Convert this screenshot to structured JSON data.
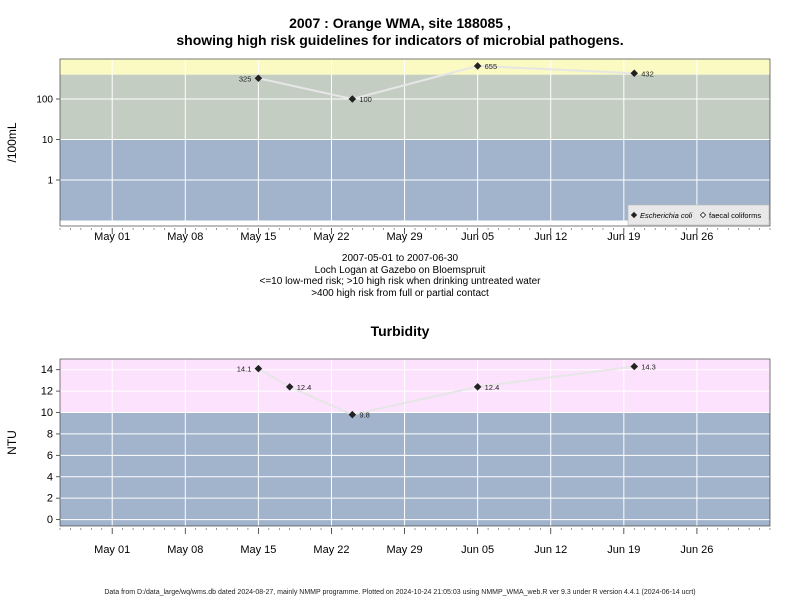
{
  "chart_data": [
    {
      "type": "line",
      "title_line1": "2007 : Orange WMA, site 188085 ,",
      "title_line2": "showing high risk guidelines for indicators of microbial pathogens.",
      "ylabel": "/100mL",
      "yscale": "log",
      "yticks": [
        {
          "v": 1,
          "label": "1"
        },
        {
          "v": 10,
          "label": "10"
        },
        {
          "v": 100,
          "label": "100"
        }
      ],
      "xlim": [
        "2007-04-26",
        "2007-07-03"
      ],
      "xticks": [
        {
          "date": "2007-05-01",
          "label": "May 01"
        },
        {
          "date": "2007-05-08",
          "label": "May 08"
        },
        {
          "date": "2007-05-15",
          "label": "May 15"
        },
        {
          "date": "2007-05-22",
          "label": "May 22"
        },
        {
          "date": "2007-05-29",
          "label": "May 29"
        },
        {
          "date": "2007-06-05",
          "label": "Jun 05"
        },
        {
          "date": "2007-06-12",
          "label": "Jun 12"
        },
        {
          "date": "2007-06-19",
          "label": "Jun 19"
        },
        {
          "date": "2007-06-26",
          "label": "Jun 26"
        }
      ],
      "bands": [
        {
          "from": 0.1,
          "to": 10,
          "color": "#a2b3cc"
        },
        {
          "from": 10,
          "to": 400,
          "color": "#c3cdc2"
        },
        {
          "from": 400,
          "to": 1000,
          "color": "#fafac2"
        }
      ],
      "series": [
        {
          "name": "Escherichia coli",
          "points": [
            {
              "date": "2007-05-15",
              "value": 325,
              "label": "325",
              "side": "left"
            },
            {
              "date": "2007-05-24",
              "value": 100,
              "label": "100",
              "side": "right"
            },
            {
              "date": "2007-06-05",
              "value": 655,
              "label": "655",
              "side": "right"
            },
            {
              "date": "2007-06-20",
              "value": 432,
              "label": "432",
              "side": "right"
            }
          ]
        }
      ],
      "legend": {
        "position": "bottom-right",
        "items": [
          {
            "label": "Escherichia coli",
            "marker": "filled-diamond",
            "italic": true
          },
          {
            "label": "faecal coliforms",
            "marker": "open-diamond",
            "italic": false
          }
        ]
      }
    },
    {
      "type": "line",
      "title": "Turbidity",
      "ylabel": "NTU",
      "ylim": [
        -0.6,
        15
      ],
      "yticks": [
        {
          "v": 0,
          "label": "0"
        },
        {
          "v": 2,
          "label": "2"
        },
        {
          "v": 4,
          "label": "4"
        },
        {
          "v": 6,
          "label": "6"
        },
        {
          "v": 8,
          "label": "8"
        },
        {
          "v": 10,
          "label": "10"
        },
        {
          "v": 12,
          "label": "12"
        },
        {
          "v": 14,
          "label": "14"
        }
      ],
      "xlim": [
        "2007-04-26",
        "2007-07-03"
      ],
      "xticks": [
        {
          "date": "2007-05-01",
          "label": "May 01"
        },
        {
          "date": "2007-05-08",
          "label": "May 08"
        },
        {
          "date": "2007-05-15",
          "label": "May 15"
        },
        {
          "date": "2007-05-22",
          "label": "May 22"
        },
        {
          "date": "2007-05-29",
          "label": "May 29"
        },
        {
          "date": "2007-06-05",
          "label": "Jun 05"
        },
        {
          "date": "2007-06-12",
          "label": "Jun 12"
        },
        {
          "date": "2007-06-19",
          "label": "Jun 19"
        },
        {
          "date": "2007-06-26",
          "label": "Jun 26"
        }
      ],
      "bands": [
        {
          "from": -0.6,
          "to": 10,
          "color": "#a2b3cc"
        },
        {
          "from": 10,
          "to": 15,
          "color": "#fce2fc"
        }
      ],
      "series": [
        {
          "name": "",
          "points": [
            {
              "date": "2007-05-15",
              "value": 14.1,
              "label": "14.1",
              "side": "left"
            },
            {
              "date": "2007-05-18",
              "value": 12.4,
              "label": "12.4",
              "side": "right"
            },
            {
              "date": "2007-05-24",
              "value": 9.8,
              "label": "9.8",
              "side": "right"
            },
            {
              "date": "2007-06-05",
              "value": 12.4,
              "label": "12.4",
              "side": "right"
            },
            {
              "date": "2007-06-20",
              "value": 14.3,
              "label": "14.3",
              "side": "right"
            }
          ]
        }
      ]
    }
  ],
  "annotations": {
    "line1": "2007-05-01 to 2007-06-30",
    "line2": "Loch Logan at Gazebo on Bloemspruit",
    "line3": "<=10 low-med risk; >10 high risk when drinking untreated water",
    "line4": ">400 high risk from full or partial contact"
  },
  "footer": "Data from D:/data_large/wq/wms.db dated 2024-08-27, mainly NMMP programme. Plotted on 2024-10-24 21:05:03 using NMMP_WMA_web.R ver 9.3 under R version 4.4.1 (2024-06-14 ucrt)"
}
